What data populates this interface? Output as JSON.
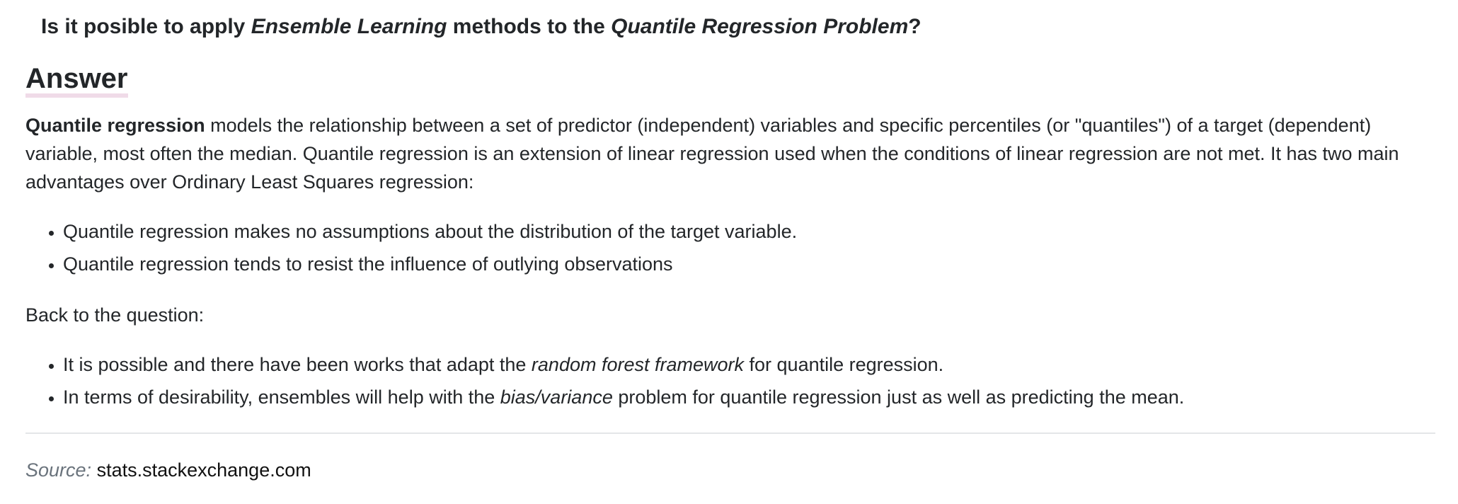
{
  "question": {
    "part1": "Is it posible to apply ",
    "em1": "Ensemble Learning",
    "part2": " methods to the ",
    "em2": "Quantile Regression Problem",
    "part3": "?"
  },
  "answer": {
    "heading": "Answer",
    "intro_bold": "Quantile regression",
    "intro_text": " models the relationship between a set of predictor (independent) variables and specific percentiles (or \"quantiles\") of a target (dependent) variable, most often the median. Quantile regression is an extension of linear regression used when the conditions of linear regression are not met. It has two main advantages over Ordinary Least Squares regression:",
    "advantages": [
      "Quantile regression makes no assumptions about the distribution of the target variable.",
      "Quantile regression tends to resist the influence of outlying observations"
    ],
    "back_to_question": "Back to the question:",
    "points": [
      {
        "before": "It is possible and there have been works that adapt the ",
        "em": "random forest framework",
        "after": " for quantile regression."
      },
      {
        "before": "In terms of desirability, ensembles will help with the ",
        "em": "bias/variance",
        "after": " problem for quantile regression just as well as predicting the mean."
      }
    ]
  },
  "source": {
    "label": "Source:",
    "link_text": "stats.stackexchange.com"
  }
}
